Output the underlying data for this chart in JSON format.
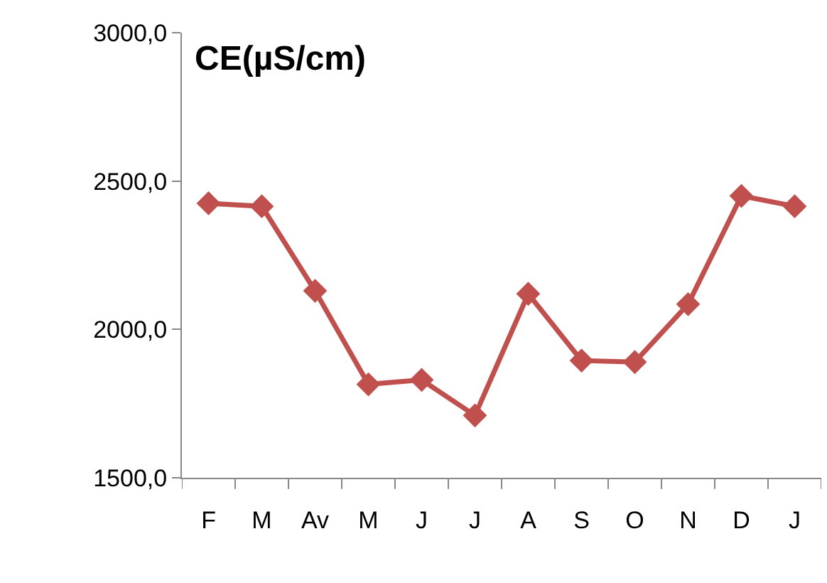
{
  "chart_data": {
    "type": "line",
    "title": "CE(µS/cm)",
    "categories": [
      "F",
      "M",
      "Av",
      "M",
      "J",
      "J",
      "A",
      "S",
      "O",
      "N",
      "D",
      "J"
    ],
    "series": [
      {
        "color": "#c0504d",
        "values": [
          2425,
          2415,
          2130,
          1815,
          1830,
          1710,
          2120,
          1895,
          1890,
          2085,
          2450,
          2415
        ]
      }
    ],
    "ylim": [
      1500,
      3000
    ],
    "yticks": [
      {
        "value": 1500,
        "label": "1500,0"
      },
      {
        "value": 2000,
        "label": "2000,0"
      },
      {
        "value": 2500,
        "label": "2500,0"
      },
      {
        "value": 3000,
        "label": "3000,0"
      }
    ],
    "grid": false,
    "marker": "diamond",
    "line_style": "solid"
  }
}
